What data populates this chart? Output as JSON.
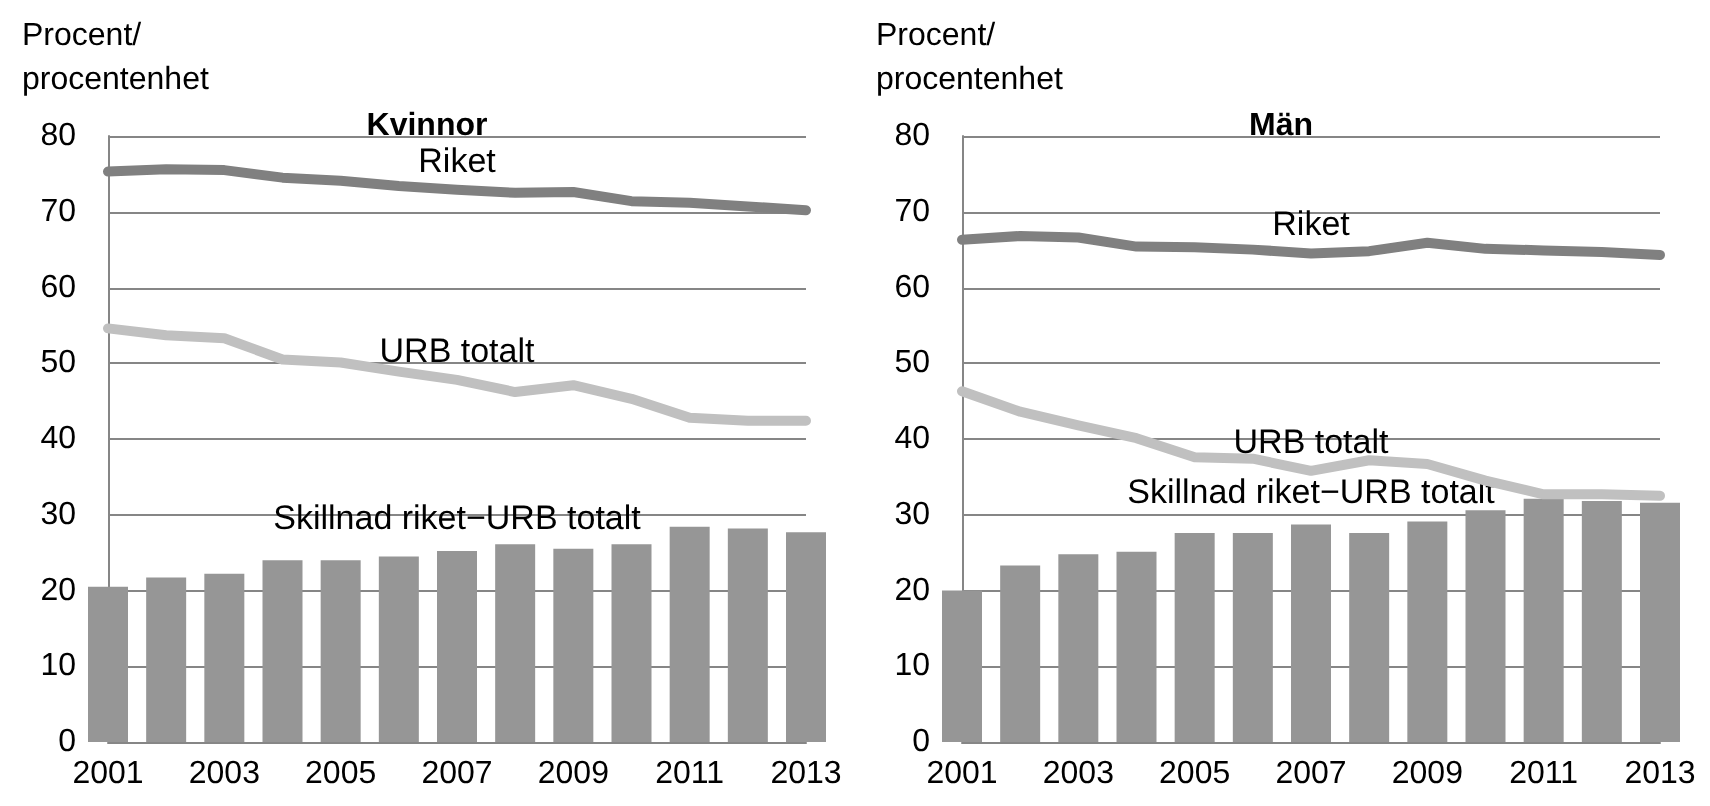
{
  "chart_data": [
    {
      "type": "line",
      "title": "Kvinnor",
      "ylabel": "Procent/\nprocentenhet",
      "x": [
        2001,
        2002,
        2003,
        2004,
        2005,
        2006,
        2007,
        2008,
        2009,
        2010,
        2011,
        2012,
        2013
      ],
      "xlim": [
        2001,
        2013
      ],
      "xticks": [
        2001,
        2003,
        2005,
        2007,
        2009,
        2011,
        2013
      ],
      "ylim": [
        0,
        80
      ],
      "yticks": [
        0,
        10,
        20,
        30,
        40,
        50,
        60,
        70,
        80
      ],
      "grid": "y",
      "legend": false,
      "marker": "none",
      "series": [
        {
          "name": "Skillnad riket−URB totalt",
          "type": "bar",
          "color": "#969696",
          "values": [
            20.5,
            21.7,
            22.2,
            24.0,
            24.0,
            24.5,
            25.2,
            26.1,
            25.5,
            26.1,
            28.4,
            28.2,
            27.7
          ]
        },
        {
          "name": "Riket",
          "color": "#808080",
          "values": [
            75.3,
            75.6,
            75.5,
            74.5,
            74.1,
            73.4,
            72.9,
            72.5,
            72.6,
            71.4,
            71.2,
            70.7,
            70.2
          ]
        },
        {
          "name": "URB totalt",
          "color": "#c0c0c0",
          "values": [
            54.6,
            53.7,
            53.3,
            50.5,
            50.1,
            48.9,
            47.8,
            46.2,
            47.1,
            45.3,
            42.8,
            42.4,
            42.4
          ]
        }
      ]
    },
    {
      "type": "line",
      "title": "Män",
      "ylabel": "Procent/\nprocentenhet",
      "x": [
        2001,
        2002,
        2003,
        2004,
        2005,
        2006,
        2007,
        2008,
        2009,
        2010,
        2011,
        2012,
        2013
      ],
      "xlim": [
        2001,
        2013
      ],
      "xticks": [
        2001,
        2003,
        2005,
        2007,
        2009,
        2011,
        2013
      ],
      "ylim": [
        0,
        80
      ],
      "yticks": [
        0,
        10,
        20,
        30,
        40,
        50,
        60,
        70,
        80
      ],
      "grid": "y",
      "legend": false,
      "marker": "none",
      "series": [
        {
          "name": "Skillnad riket−URB totalt",
          "type": "bar",
          "color": "#969696",
          "values": [
            20.0,
            23.3,
            24.8,
            25.1,
            27.6,
            27.6,
            28.7,
            27.6,
            29.1,
            30.6,
            32.1,
            31.8,
            31.6
          ]
        },
        {
          "name": "Riket",
          "color": "#808080",
          "values": [
            66.3,
            66.8,
            66.6,
            65.4,
            65.3,
            65.0,
            64.5,
            64.8,
            65.9,
            65.1,
            64.9,
            64.7,
            64.3
          ]
        },
        {
          "name": "URB totalt",
          "color": "#c0c0c0",
          "values": [
            46.3,
            43.6,
            41.8,
            40.1,
            37.6,
            37.4,
            35.8,
            37.2,
            36.7,
            34.5,
            32.7,
            32.7,
            32.5
          ]
        }
      ]
    }
  ]
}
